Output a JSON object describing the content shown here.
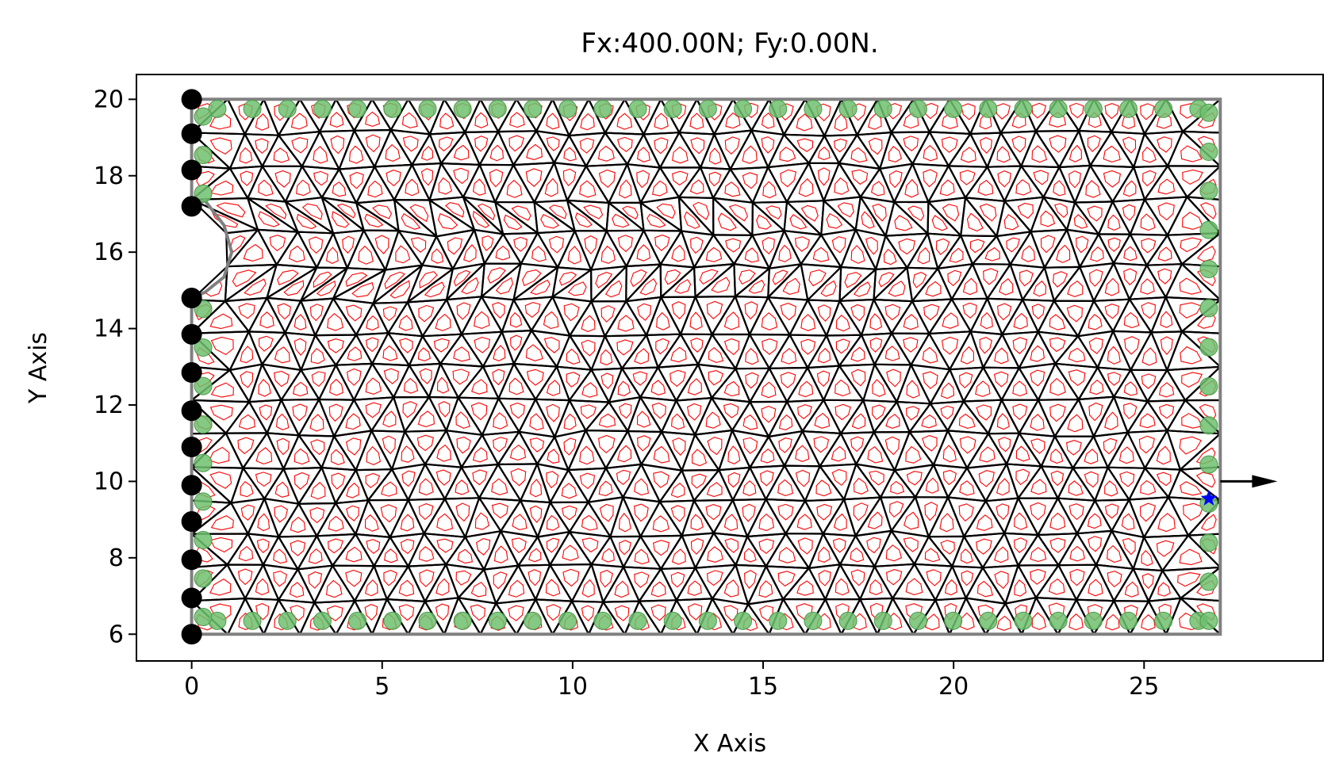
{
  "chart_data": {
    "type": "scatter",
    "title": "Fx:400.00N; Fy:0.00N.",
    "xlabel": "X Axis",
    "ylabel": "Y Axis",
    "xlim": [
      -1.45,
      29.7
    ],
    "ylim": [
      5.3,
      20.65
    ],
    "xticks": [
      0,
      5,
      10,
      15,
      20,
      25
    ],
    "yticks": [
      6,
      8,
      10,
      12,
      14,
      16,
      18,
      20
    ],
    "grid": false,
    "legend": "none",
    "domain": {
      "x": [
        0,
        27
      ],
      "y": [
        6,
        20
      ],
      "notch": [
        [
          0,
          17.2
        ],
        [
          0.35,
          17.35
        ],
        [
          0.85,
          16.7
        ],
        [
          1.05,
          16.0
        ],
        [
          0.85,
          15.35
        ],
        [
          0.35,
          14.95
        ],
        [
          0,
          14.8
        ]
      ]
    },
    "fixed_supports": {
      "x": 0,
      "y": [
        6.0,
        6.95,
        7.95,
        8.95,
        9.9,
        10.9,
        11.85,
        12.85,
        13.85,
        14.8,
        17.2,
        18.15,
        19.1,
        20.0
      ]
    },
    "load": {
      "point": [
        27,
        10
      ],
      "Fx": 400.0,
      "Fy": 0.0,
      "arrow_end": [
        28.5,
        10
      ]
    },
    "marker_point": [
      26.7,
      9.55
    ],
    "colors": {
      "mesh": "#000000",
      "dual_mesh": "#ff0000",
      "boundary": "#808080",
      "boundary_nodes": "#6fbf6f",
      "supports": "#000000",
      "marker": "#0000ff"
    }
  }
}
